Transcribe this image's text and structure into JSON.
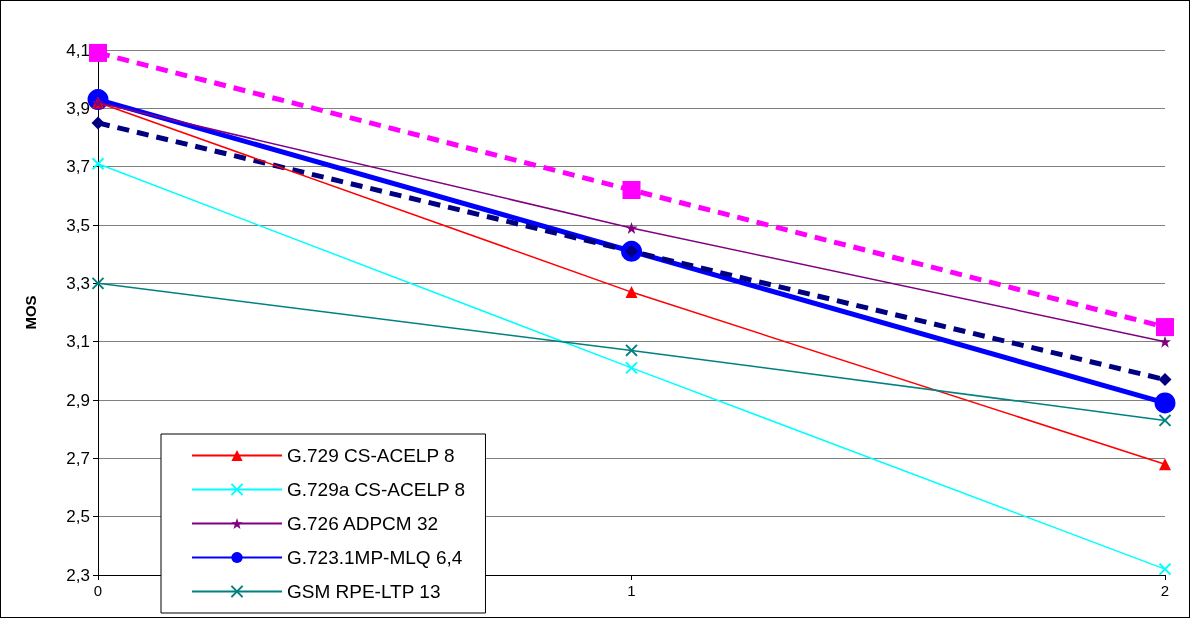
{
  "chart_data": {
    "type": "line",
    "ylabel": "MOS",
    "x": [
      0,
      1,
      2
    ],
    "series": [
      {
        "name": "G.729 CS-ACELP 8",
        "color": "#ff0000",
        "marker": "triangle",
        "line_style": "solid",
        "values": [
          3.92,
          3.27,
          2.68
        ]
      },
      {
        "name": "G.729a CS-ACELP 8",
        "color": "#00ffff",
        "marker": "cross",
        "line_style": "solid",
        "values": [
          3.71,
          3.01,
          2.32
        ]
      },
      {
        "name": "G.726 ADPCM 32",
        "color": "#800080",
        "marker": "star",
        "line_style": "solid",
        "values": [
          3.92,
          3.49,
          3.1
        ]
      },
      {
        "name": "G.723.1MP-MLQ 6,4",
        "color": "#0000ff",
        "marker": "circle",
        "line_style": "solid",
        "values": [
          3.93,
          3.41,
          2.89
        ]
      },
      {
        "name": "GSM RPE-LTP 13",
        "color": "#008080",
        "marker": "cross",
        "line_style": "solid",
        "values": [
          3.3,
          3.07,
          2.83
        ]
      },
      {
        "color": "#000080",
        "marker": "diamond",
        "line_style": "dashed",
        "values": [
          3.85,
          3.41,
          2.97
        ]
      },
      {
        "color": "#ff00ff",
        "marker": "square",
        "line_style": "dashed",
        "values": [
          4.09,
          3.62,
          3.15
        ]
      }
    ],
    "xlim": [
      0,
      2
    ],
    "xticks": [
      0,
      1,
      2
    ],
    "ylim": [
      2.3,
      4.1
    ],
    "yticks": [
      {
        "value": 2.3,
        "label": "2,3"
      },
      {
        "value": 2.5,
        "label": "2,5"
      },
      {
        "value": 2.7,
        "label": "2,7"
      },
      {
        "value": 2.9,
        "label": "2,9"
      },
      {
        "value": 3.1,
        "label": "3,1"
      },
      {
        "value": 3.3,
        "label": "3,3"
      },
      {
        "value": 3.5,
        "label": "3,5"
      },
      {
        "value": 3.7,
        "label": "3,7"
      },
      {
        "value": 3.9,
        "label": "3,9"
      },
      {
        "value": 4.1,
        "label": "4,1"
      }
    ],
    "grid": "y",
    "legend": "bottom left"
  }
}
